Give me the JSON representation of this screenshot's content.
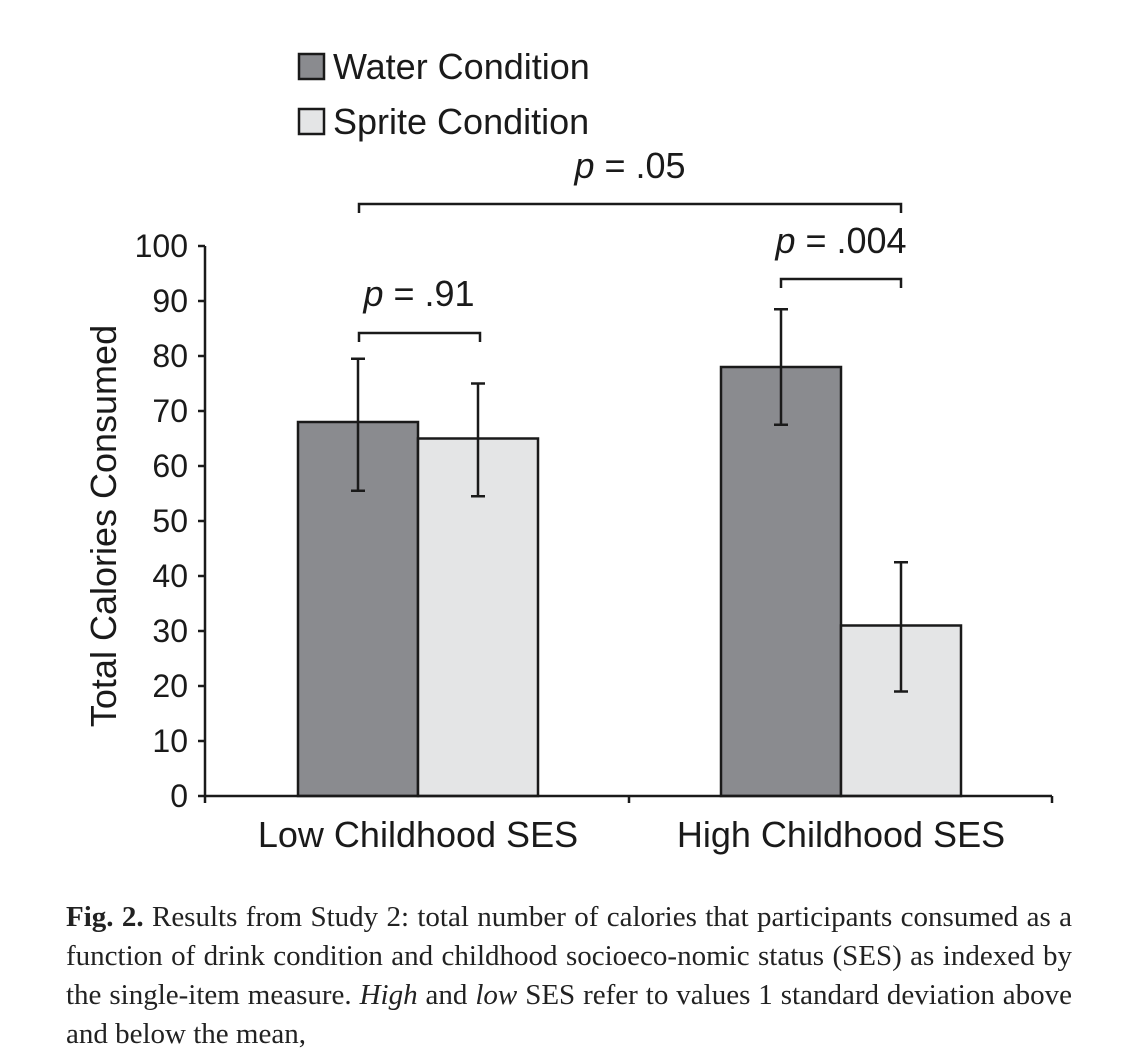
{
  "chart_data": {
    "type": "bar",
    "categories": [
      "Low Childhood SES",
      "High Childhood SES"
    ],
    "series": [
      {
        "name": "Water Condition",
        "color": "#8a8b8f",
        "values": [
          68,
          78
        ],
        "error_high": [
          79.5,
          88.5
        ],
        "error_low": [
          55.5,
          67.5
        ]
      },
      {
        "name": "Sprite Condition",
        "color": "#e4e5e6",
        "values": [
          65,
          31
        ],
        "error_high": [
          75,
          42.5
        ],
        "error_low": [
          54.5,
          19
        ]
      }
    ],
    "ylabel": "Total Calories Consumed",
    "xlabel": "",
    "ylim": [
      0,
      100
    ],
    "yticks": [
      0,
      10,
      20,
      30,
      40,
      50,
      60,
      70,
      80,
      90,
      100
    ],
    "legend_position": "top-left",
    "grid": false,
    "annotations": [
      {
        "prefix": "p",
        "text": " = .91",
        "spans": "low-ses-water-vs-sprite"
      },
      {
        "prefix": "p",
        "text": " = .004",
        "spans": "high-ses-water-vs-sprite"
      },
      {
        "prefix": "p",
        "text": " = .05",
        "spans": "low-ses-water-vs-high-ses-sprite"
      }
    ]
  },
  "caption": {
    "label": "Fig. 2.",
    "part1": " Results from Study 2: total number of calories that participants consumed as a function of drink condition and childhood socioeco-nomic status (SES) as indexed by the single-item measure. ",
    "em1": "High",
    "part2": " and ",
    "em2": "low",
    "part3": " SES refer to values 1 standard deviation above and below the mean,"
  }
}
